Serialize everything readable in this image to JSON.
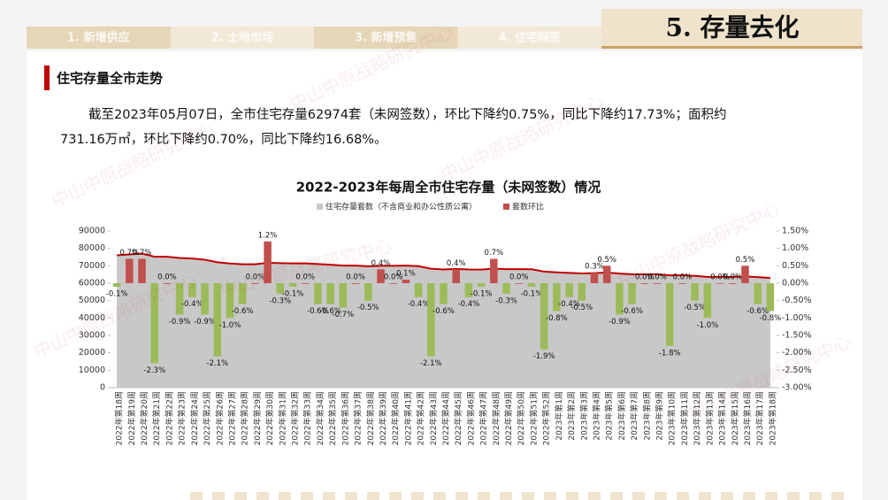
{
  "nav": {
    "tabs": [
      "1. 新增供应",
      "2. 土地市场",
      "3. 新增预售",
      "4. 住宅网签"
    ],
    "active": "5. 存量去化"
  },
  "section_title": "住宅存量全市走势",
  "paragraph": [
    "截至2023年05月07日，全市住宅存量62974套（未网签数），环比下降约0.75%，同比下降约17.73%；面积约",
    "731.16万㎡，环比下降约0.70%，同比下降约16.68%。"
  ],
  "watermark": "中山中原战略研究中心",
  "chart_data": {
    "type": "combo",
    "title": "2022-2023年每周全市住宅存量（未网签数）情况",
    "categories": [
      "2022年第18周",
      "2022年第19周",
      "2022年第20周",
      "2022年第21周",
      "2022年第22周",
      "2022年第23周",
      "2022年第24周",
      "2022年第25周",
      "2022年第26周",
      "2022年第27周",
      "2022年第28周",
      "2022年第29周",
      "2022年第30周",
      "2022年第31周",
      "2022年第32周",
      "2022年第33周",
      "2022年第34周",
      "2022年第35周",
      "2022年第36周",
      "2022年第37周",
      "2022年第38周",
      "2022年第39周",
      "2022年第40周",
      "2022年第41周",
      "2022年第42周",
      "2022年第43周",
      "2022年第44周",
      "2022年第45周",
      "2022年第46周",
      "2022年第47周",
      "2022年第48周",
      "2022年第49周",
      "2022年第50周",
      "2022年第51周",
      "2022年第52周",
      "2023年第1周",
      "2023年第2周",
      "2023年第3周",
      "2023年第4周",
      "2023年第5周",
      "2023年第6周",
      "2023年第7周",
      "2023年第8周",
      "2023年第9周",
      "2023年第10周",
      "2023年第11周",
      "2023年第12周",
      "2023年第13周",
      "2023年第14周",
      "2023年第15周",
      "2023年第16周",
      "2023年第17周",
      "2023年第18周"
    ],
    "series": [
      {
        "name": "住宅存量套数（不含商业和办公性质公寓）",
        "type": "area",
        "color": "#c8c8c8",
        "line_color": "#c00000",
        "values": [
          76000,
          76500,
          77000,
          75200,
          75200,
          74500,
          74200,
          73500,
          72000,
          71300,
          70900,
          70900,
          71700,
          71500,
          71400,
          71400,
          71000,
          70600,
          70100,
          70100,
          69700,
          70000,
          70000,
          70100,
          69800,
          68300,
          67900,
          68200,
          67900,
          67800,
          68300,
          68100,
          68100,
          68000,
          66700,
          66200,
          65900,
          65600,
          65800,
          66100,
          65500,
          65100,
          65100,
          65100,
          64500,
          64500,
          64200,
          63600,
          63600,
          63600,
          63900,
          63500,
          62974
        ]
      },
      {
        "name": "套数环比",
        "type": "bar",
        "axis": "y2",
        "color": "#c0504d",
        "negative_color": "#9bbb59",
        "values": [
          -0.1,
          0.7,
          0.7,
          -2.3,
          0.0,
          -0.9,
          -0.4,
          -0.9,
          -2.1,
          -1.0,
          -0.6,
          0.0,
          1.2,
          -0.3,
          -0.1,
          0.0,
          -0.6,
          -0.6,
          -0.7,
          0.0,
          -0.5,
          0.4,
          0.0,
          0.1,
          -0.4,
          -2.1,
          -0.6,
          0.4,
          -0.4,
          -0.1,
          0.7,
          -0.3,
          0.0,
          -0.1,
          -1.9,
          -0.8,
          -0.4,
          -0.5,
          0.3,
          0.5,
          -0.9,
          -0.6,
          0.0,
          0.0,
          -1.8,
          0.0,
          -0.5,
          -1.0,
          0.0,
          0.0,
          0.5,
          -0.6,
          -0.8
        ],
        "value_labels": [
          "-0.1%",
          "0.7%",
          "0.7%",
          "-2.3%",
          "0.0%",
          "-0.9%",
          "-0.4%",
          "-0.9%",
          "-2.1%",
          "-1.0%",
          "-0.6%",
          "0.0%",
          "1.2%",
          "-0.3%",
          "-0.1%",
          "0.0%",
          "-0.6%",
          "-0.6%",
          "-0.7%",
          "0.0%",
          "-0.5%",
          "0.4%",
          "0.0%",
          "0.1%",
          "-0.4%",
          "-2.1%",
          "-0.6%",
          "0.4%",
          "-0.4%",
          "-0.1%",
          "0.7%",
          "-0.3%",
          "0.0%",
          "-0.1%",
          "-1.9%",
          "-0.8%",
          "-0.4%",
          "-0.5%",
          "0.3%",
          "0.5%",
          "-0.9%",
          "-0.6%",
          "0.0%",
          "0.0%",
          "-1.8%",
          "0.0%",
          "-0.5%",
          "-1.0%",
          "0.0%",
          "0.0%",
          "0.5%",
          "-0.6%",
          "-0.8%"
        ]
      }
    ],
    "ylim": [
      0,
      90000
    ],
    "yticks": [
      0,
      10000,
      20000,
      30000,
      40000,
      50000,
      60000,
      70000,
      80000,
      90000
    ],
    "y2lim": [
      -3,
      1.5
    ],
    "y2ticks": [
      {
        "value": -3,
        "label": "-3.00%"
      },
      {
        "value": -2.5,
        "label": "-2.50%"
      },
      {
        "value": -2,
        "label": "-2.00%"
      },
      {
        "value": -1.5,
        "label": "-1.50%"
      },
      {
        "value": -1,
        "label": "-1.00%"
      },
      {
        "value": -0.5,
        "label": "-0.50%"
      },
      {
        "value": 0,
        "label": "0.00%"
      },
      {
        "value": 0.5,
        "label": "0.50%"
      },
      {
        "value": 1,
        "label": "1.00%"
      },
      {
        "value": 1.5,
        "label": "1.50%"
      }
    ],
    "legend": "top"
  }
}
